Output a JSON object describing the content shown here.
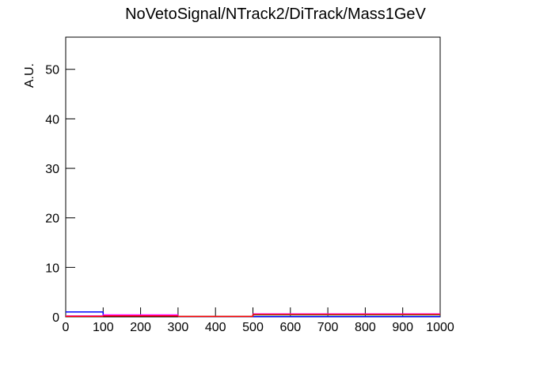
{
  "chart_data": {
    "type": "histogram",
    "title": "NoVetoSignal/NTrack2/DiTrack/Mass1GeV",
    "y_label": "A.U.",
    "bins": [
      0,
      100,
      300,
      500,
      1000
    ],
    "series": [
      {
        "color": "#0000ff",
        "values": [
          1.0,
          0.3,
          0.1,
          0.05
        ]
      },
      {
        "color": "#ff00ff",
        "values": [
          0.2,
          0.4,
          0.1,
          0.6
        ]
      },
      {
        "color": "#00cc66",
        "values": [
          0.1,
          0.2,
          0.1,
          0.4
        ]
      },
      {
        "color": "#ff0000",
        "values": [
          0.1,
          0.2,
          0.1,
          0.5
        ]
      }
    ],
    "xlim": [
      0,
      1000
    ],
    "xticks": [
      0,
      100,
      200,
      300,
      400,
      500,
      600,
      700,
      800,
      900,
      1000
    ],
    "ylim": [
      0,
      56.5
    ],
    "yticks": [
      0,
      10,
      20,
      30,
      40,
      50
    ]
  }
}
